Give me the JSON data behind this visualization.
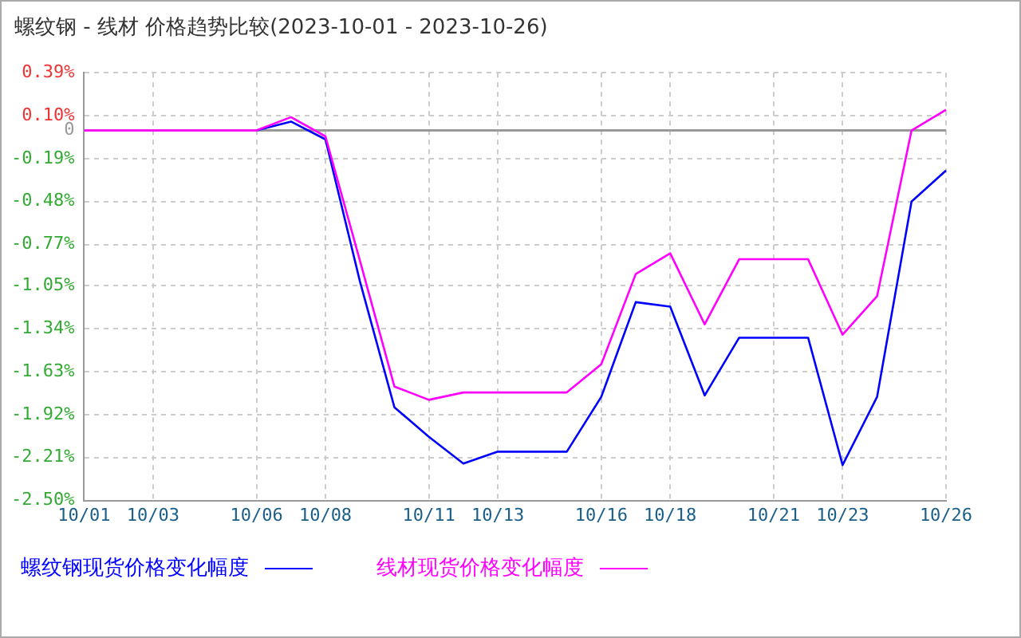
{
  "chart_data": {
    "type": "line",
    "title": "螺纹钢 - 线材 价格趋势比较(2023-10-01 - 2023-10-26)",
    "categories": [
      "10/01",
      null,
      "10/03",
      null,
      null,
      "10/06",
      null,
      "10/08",
      null,
      null,
      "10/11",
      null,
      "10/13",
      null,
      null,
      "10/16",
      null,
      "10/18",
      null,
      null,
      "10/21",
      null,
      "10/23",
      null,
      null,
      "10/26"
    ],
    "series": [
      {
        "name": "螺纹钢现货价格变化幅度",
        "color": "#0000ff",
        "values": [
          null,
          null,
          null,
          null,
          null,
          0,
          0.06,
          -0.06,
          -1.02,
          -1.87,
          -2.07,
          -2.25,
          -2.17,
          -2.17,
          -2.17,
          -1.8,
          -1.16,
          -1.19,
          -1.79,
          -1.4,
          -1.4,
          -1.4,
          -2.26,
          -1.8,
          -0.48,
          -0.27
        ]
      },
      {
        "name": "线材现货价格变化幅度",
        "color": "#ff00ff",
        "values": [
          0,
          0,
          0,
          0,
          0,
          0,
          0.09,
          -0.04,
          -0.88,
          -1.73,
          -1.82,
          -1.77,
          -1.77,
          -1.77,
          -1.77,
          -1.58,
          -0.97,
          -0.83,
          -1.31,
          -0.87,
          -0.87,
          -0.87,
          -1.38,
          -1.12,
          0,
          0.14
        ]
      }
    ],
    "ylim": [
      -2.5,
      0.39
    ],
    "yticks": [
      {
        "value": 0.39,
        "label": "0.39%"
      },
      {
        "value": 0.1,
        "label": "0.10%"
      },
      0,
      {
        "value": -0.19,
        "label": "-0.19%"
      },
      {
        "value": -0.48,
        "label": "-0.48%"
      },
      {
        "value": -0.77,
        "label": "-0.77%"
      },
      {
        "value": -1.05,
        "label": "-1.05%"
      },
      {
        "value": -1.34,
        "label": "-1.34%"
      },
      {
        "value": -1.63,
        "label": "-1.63%"
      },
      {
        "value": -1.92,
        "label": "-1.92%"
      },
      {
        "value": -2.21,
        "label": "-2.21%"
      },
      {
        "value": -2.5,
        "label": "-2.50%"
      }
    ],
    "ref_lines": [
      {
        "axis": "y",
        "value": 0,
        "color": "#999999"
      }
    ],
    "grid": true,
    "legend": "bottom",
    "marker": "none",
    "line_style": "solid"
  }
}
